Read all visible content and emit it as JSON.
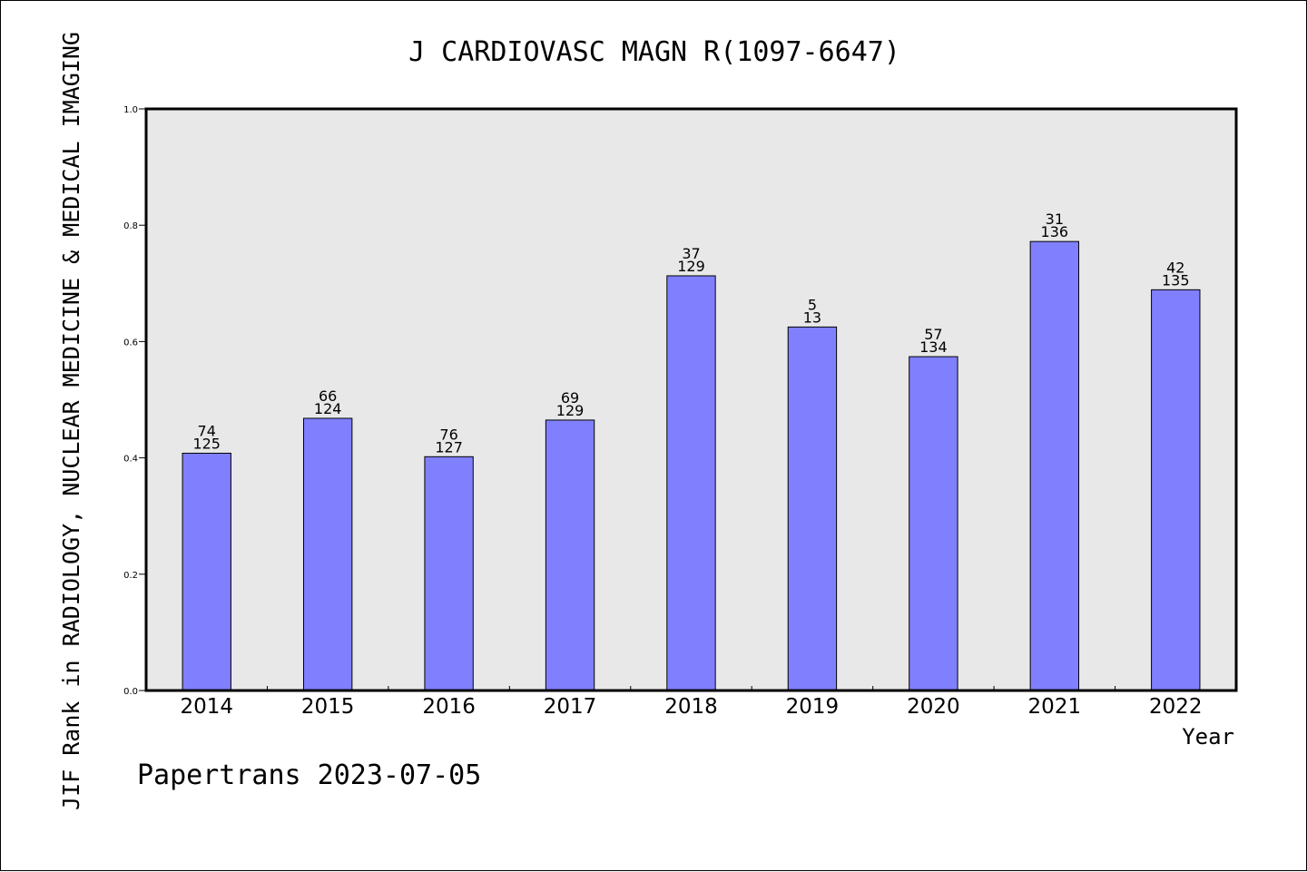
{
  "chart_data": {
    "type": "bar",
    "title": "J CARDIOVASC MAGN R(1097-6647)",
    "ylabel": "JIF Rank in RADIOLOGY, NUCLEAR MEDICINE & MEDICAL IMAGING",
    "xlabel": "Year",
    "ylim": [
      0.0,
      1.0
    ],
    "yticks": [
      "0.0",
      "0.2",
      "0.4",
      "0.6",
      "0.8",
      "1.0"
    ],
    "categories": [
      "2014",
      "2015",
      "2016",
      "2017",
      "2018",
      "2019",
      "2020",
      "2021",
      "2022"
    ],
    "values": [
      0.408,
      0.468,
      0.402,
      0.465,
      0.713,
      0.625,
      0.574,
      0.772,
      0.689
    ],
    "ranks": [
      "74",
      "66",
      "76",
      "69",
      "37",
      "5",
      "57",
      "31",
      "42"
    ],
    "totals": [
      "125",
      "124",
      "127",
      "129",
      "129",
      "13",
      "134",
      "136",
      "135"
    ],
    "grid": false,
    "bar_color": "#8080ff",
    "plot_background": "#e8e8e8"
  },
  "footer": "Papertrans 2023-07-05"
}
